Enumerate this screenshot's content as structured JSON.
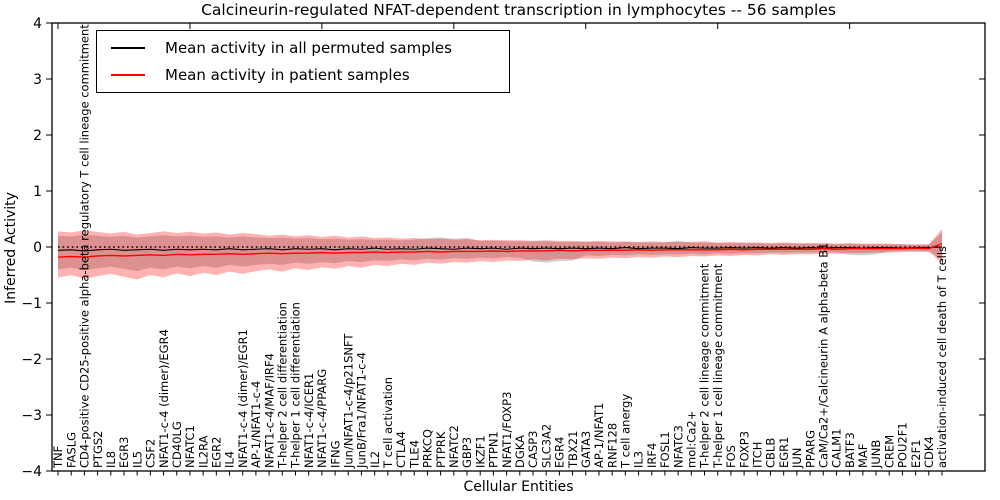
{
  "figure": {
    "title": "Calcineurin-regulated NFAT-dependent transcription in lymphocytes -- 56 samples",
    "xlabel": "Cellular Entities",
    "ylabel": "Inferred Activity",
    "background_color": "#ffffff"
  },
  "legend": {
    "entries": [
      {
        "label": "Mean activity in all permuted samples",
        "color": "#000000"
      },
      {
        "label": "Mean activity in patient samples",
        "color": "#ff0000"
      }
    ],
    "position": "upper left"
  },
  "chart_data": {
    "type": "line",
    "title": "Calcineurin-regulated NFAT-dependent transcription in lymphocytes -- 56 samples",
    "xlabel": "Cellular Entities",
    "ylabel": "Inferred Activity",
    "ylim": [
      -4,
      4
    ],
    "ytick_values": [
      4,
      3,
      2,
      1,
      0,
      -1,
      -2,
      -3,
      -4
    ],
    "ytick_labels": [
      "4",
      "3",
      "2",
      "1",
      "0",
      "−1",
      "−2",
      "−3",
      "−4"
    ],
    "grid": false,
    "legend_position": "upper left",
    "reference_line": {
      "y": 0,
      "style": "dotted",
      "color": "#000000"
    },
    "top_axis_tick_interval": 10,
    "categories": [
      "TNF",
      "FASLG",
      "CD4-positive CD25-positive alpha-beta regulatory T cell lineage commitment",
      "PTGS2",
      "IL8",
      "EGR3",
      "IL5",
      "CSF2",
      "NFAT1-c-4 (dimer)/EGR4",
      "CD40LG",
      "NFATC1",
      "IL2RA",
      "EGR2",
      "IL4",
      "NFAT1-c-4 (dimer)/EGR1",
      "AP-1/NFAT1-c-4",
      "NFAT1-c-4/MAF/IRF4",
      "T-helper 2 cell differentiation",
      "T-helper 1 cell differentiation",
      "NFAT1-c-4/ICER1",
      "NFAT1-c-4/PPARG",
      "IFNG",
      "Jun/NFAT1-c-4/p21SNFT",
      "JunB/Fra1/NFAT1-c-4",
      "IL2",
      "T cell activation",
      "CTLA4",
      "TLE4",
      "PRKCQ",
      "PTPRK",
      "NFATC2",
      "GBP3",
      "IKZF1",
      "PTPN1",
      "NFAT1/FOXP3",
      "DGKA",
      "CASP3",
      "SLC3A2",
      "EGR4",
      "TBX21",
      "GATA3",
      "AP-1/NFAT1",
      "RNF128",
      "T cell anergy",
      "IL3",
      "IRF4",
      "FOSL1",
      "NFATC3",
      "mol:Ca2+",
      "T-helper 2 cell lineage commitment",
      "T-helper 1 cell lineage commitment",
      "FOS",
      "FOXP3",
      "ITCH",
      "CBLB",
      "EGR1",
      "JUN",
      "PPARG",
      "CaM/Ca2+/Calcineurin A alpha-beta B1",
      "CALM1",
      "BATF3",
      "MAF",
      "JUNB",
      "CREM",
      "POU2F1",
      "E2F1",
      "CDK4",
      "activation-induced cell death of T cells"
    ],
    "series": [
      {
        "name": "Mean activity in all permuted samples",
        "color": "#000000",
        "band_color": "rgba(130,130,130,0.38)",
        "mean": [
          -0.06,
          -0.05,
          -0.07,
          -0.05,
          -0.04,
          -0.06,
          -0.05,
          -0.04,
          -0.06,
          -0.04,
          -0.05,
          -0.04,
          -0.05,
          -0.03,
          -0.05,
          -0.04,
          -0.03,
          -0.05,
          -0.03,
          -0.04,
          -0.03,
          -0.05,
          -0.03,
          -0.04,
          -0.02,
          -0.04,
          -0.03,
          -0.04,
          -0.02,
          -0.03,
          -0.04,
          -0.02,
          -0.03,
          -0.02,
          -0.04,
          -0.02,
          -0.03,
          -0.02,
          -0.03,
          -0.02,
          -0.03,
          -0.02,
          -0.03,
          -0.01,
          -0.03,
          -0.02,
          -0.02,
          -0.03,
          -0.01,
          -0.02,
          -0.02,
          -0.01,
          -0.02,
          -0.01,
          -0.02,
          -0.01,
          -0.02,
          -0.01,
          -0.02,
          -0.01,
          -0.01,
          -0.02,
          -0.01,
          -0.01,
          -0.02,
          -0.01,
          -0.01,
          0.0
        ],
        "upper": [
          0.2,
          0.19,
          0.22,
          0.2,
          0.18,
          0.2,
          0.17,
          0.19,
          0.21,
          0.19,
          0.2,
          0.18,
          0.19,
          0.17,
          0.19,
          0.17,
          0.16,
          0.17,
          0.15,
          0.16,
          0.14,
          0.15,
          0.13,
          0.14,
          0.13,
          0.13,
          0.12,
          0.13,
          0.16,
          0.17,
          0.15,
          0.16,
          0.11,
          0.11,
          0.1,
          0.1,
          0.1,
          0.1,
          0.09,
          0.09,
          0.09,
          0.09,
          0.08,
          0.09,
          0.08,
          0.08,
          0.08,
          0.11,
          0.08,
          0.08,
          0.07,
          0.07,
          0.07,
          0.07,
          0.06,
          0.07,
          0.06,
          0.06,
          0.06,
          0.05,
          0.06,
          0.05,
          0.05,
          0.05,
          0.05,
          0.04,
          0.04,
          0.26
        ],
        "lower": [
          -0.4,
          -0.37,
          -0.42,
          -0.38,
          -0.35,
          -0.39,
          -0.43,
          -0.37,
          -0.4,
          -0.35,
          -0.38,
          -0.34,
          -0.37,
          -0.32,
          -0.35,
          -0.32,
          -0.3,
          -0.32,
          -0.28,
          -0.3,
          -0.27,
          -0.29,
          -0.25,
          -0.27,
          -0.24,
          -0.25,
          -0.22,
          -0.24,
          -0.21,
          -0.22,
          -0.2,
          -0.21,
          -0.19,
          -0.2,
          -0.18,
          -0.19,
          -0.26,
          -0.28,
          -0.25,
          -0.24,
          -0.15,
          -0.16,
          -0.14,
          -0.15,
          -0.13,
          -0.14,
          -0.13,
          -0.13,
          -0.12,
          -0.13,
          -0.11,
          -0.12,
          -0.11,
          -0.11,
          -0.1,
          -0.1,
          -0.1,
          -0.1,
          -0.09,
          -0.09,
          -0.14,
          -0.15,
          -0.13,
          -0.08,
          -0.07,
          -0.07,
          -0.07,
          -0.22
        ]
      },
      {
        "name": "Mean activity in patient samples",
        "color": "#ff0000",
        "band_color": "rgba(255,0,0,0.30)",
        "mean": [
          -0.18,
          -0.17,
          -0.18,
          -0.16,
          -0.15,
          -0.16,
          -0.15,
          -0.14,
          -0.15,
          -0.13,
          -0.14,
          -0.13,
          -0.13,
          -0.12,
          -0.13,
          -0.12,
          -0.11,
          -0.12,
          -0.11,
          -0.11,
          -0.1,
          -0.11,
          -0.1,
          -0.1,
          -0.09,
          -0.1,
          -0.09,
          -0.09,
          -0.08,
          -0.09,
          -0.08,
          -0.08,
          -0.08,
          -0.07,
          -0.08,
          -0.07,
          -0.07,
          -0.07,
          -0.06,
          -0.07,
          -0.06,
          -0.06,
          -0.06,
          -0.06,
          -0.05,
          -0.06,
          -0.05,
          -0.05,
          -0.05,
          -0.05,
          -0.05,
          -0.04,
          -0.05,
          -0.04,
          -0.04,
          -0.04,
          -0.04,
          -0.04,
          -0.03,
          -0.04,
          -0.03,
          -0.03,
          -0.03,
          -0.03,
          -0.03,
          -0.02,
          -0.03,
          0.06
        ],
        "upper": [
          0.28,
          0.26,
          0.3,
          0.27,
          0.24,
          0.27,
          0.22,
          0.25,
          0.28,
          0.25,
          0.27,
          0.24,
          0.26,
          0.22,
          0.25,
          0.23,
          0.2,
          0.22,
          0.19,
          0.21,
          0.18,
          0.2,
          0.17,
          0.19,
          0.16,
          0.17,
          0.15,
          0.16,
          0.14,
          0.15,
          0.13,
          0.14,
          0.12,
          0.13,
          0.12,
          0.12,
          0.11,
          0.12,
          0.11,
          0.11,
          0.1,
          0.11,
          0.1,
          0.1,
          0.09,
          0.1,
          0.09,
          0.09,
          0.09,
          0.1,
          0.08,
          0.09,
          0.08,
          0.08,
          0.07,
          0.08,
          0.07,
          0.07,
          0.07,
          0.06,
          0.07,
          0.06,
          0.06,
          0.06,
          0.05,
          0.05,
          0.05,
          0.32
        ],
        "lower": [
          -0.55,
          -0.5,
          -0.57,
          -0.52,
          -0.48,
          -0.53,
          -0.58,
          -0.5,
          -0.54,
          -0.47,
          -0.52,
          -0.46,
          -0.5,
          -0.44,
          -0.48,
          -0.43,
          -0.4,
          -0.44,
          -0.38,
          -0.41,
          -0.36,
          -0.39,
          -0.34,
          -0.37,
          -0.32,
          -0.34,
          -0.3,
          -0.32,
          -0.28,
          -0.3,
          -0.27,
          -0.28,
          -0.25,
          -0.27,
          -0.24,
          -0.25,
          -0.22,
          -0.24,
          -0.21,
          -0.22,
          -0.2,
          -0.21,
          -0.19,
          -0.2,
          -0.18,
          -0.19,
          -0.17,
          -0.18,
          -0.16,
          -0.17,
          -0.15,
          -0.16,
          -0.14,
          -0.15,
          -0.13,
          -0.14,
          -0.13,
          -0.13,
          -0.12,
          -0.12,
          -0.11,
          -0.11,
          -0.1,
          -0.1,
          -0.09,
          -0.09,
          -0.09,
          -0.28
        ]
      }
    ]
  }
}
